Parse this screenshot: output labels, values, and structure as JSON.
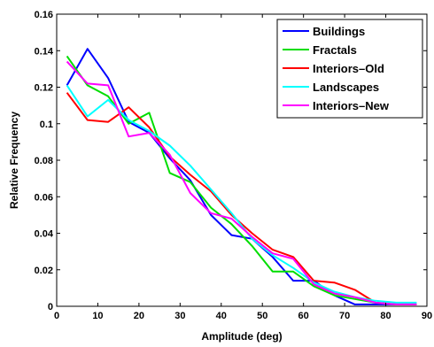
{
  "chart_data": {
    "type": "line",
    "title": "",
    "xlabel": "Amplitude (deg)",
    "ylabel": "Relative Frequency",
    "xlim": [
      0,
      90
    ],
    "ylim": [
      0,
      0.16
    ],
    "xticks": [
      0,
      10,
      20,
      30,
      40,
      50,
      60,
      70,
      80,
      90
    ],
    "yticks": [
      0,
      0.02,
      0.04,
      0.06,
      0.08,
      0.1,
      0.12,
      0.14,
      0.16
    ],
    "xtick_labels": [
      "0",
      "10",
      "20",
      "30",
      "40",
      "50",
      "60",
      "70",
      "80",
      "90"
    ],
    "ytick_labels": [
      "0",
      "0.02",
      "0.04",
      "0.06",
      "0.08",
      "0.1",
      "0.12",
      "0.14",
      "0.16"
    ],
    "grid": false,
    "legend_position": "top-right",
    "x": [
      2.5,
      7.5,
      12.5,
      17.5,
      22.5,
      27.5,
      32.5,
      37.5,
      42.5,
      47.5,
      52.5,
      57.5,
      62.5,
      67.5,
      72.5,
      77.5,
      82.5,
      87.5
    ],
    "series": [
      {
        "name": "Buildings",
        "color": "#0000ff",
        "values": [
          0.121,
          0.141,
          0.125,
          0.101,
          0.095,
          0.081,
          0.069,
          0.05,
          0.039,
          0.037,
          0.027,
          0.014,
          0.014,
          0.006,
          0.001,
          0.001,
          0.001,
          0.001
        ]
      },
      {
        "name": "Fractals",
        "color": "#00dd00",
        "values": [
          0.137,
          0.121,
          0.115,
          0.1,
          0.106,
          0.073,
          0.068,
          0.054,
          0.045,
          0.033,
          0.019,
          0.019,
          0.011,
          0.006,
          0.004,
          0.002,
          0.001,
          0.001
        ]
      },
      {
        "name": "Interiors–Old",
        "color": "#ff0000",
        "values": [
          0.117,
          0.102,
          0.101,
          0.109,
          0.098,
          0.082,
          0.072,
          0.063,
          0.05,
          0.04,
          0.031,
          0.027,
          0.014,
          0.013,
          0.009,
          0.002,
          0.001,
          0.001
        ]
      },
      {
        "name": "Landscapes",
        "color": "#00ffff",
        "values": [
          0.121,
          0.104,
          0.113,
          0.102,
          0.096,
          0.088,
          0.077,
          0.064,
          0.051,
          0.037,
          0.028,
          0.021,
          0.013,
          0.008,
          0.005,
          0.003,
          0.002,
          0.002
        ]
      },
      {
        "name": "Interiors–New",
        "color": "#ff00ff",
        "values": [
          0.134,
          0.122,
          0.121,
          0.093,
          0.095,
          0.083,
          0.062,
          0.051,
          0.048,
          0.038,
          0.029,
          0.026,
          0.012,
          0.007,
          0.005,
          0.002,
          0.001,
          0.001
        ]
      }
    ]
  }
}
